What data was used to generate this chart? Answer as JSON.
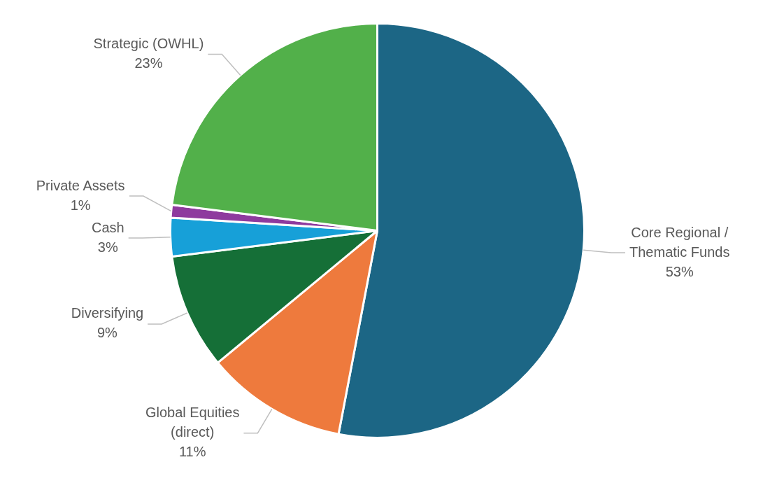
{
  "chart_data": {
    "type": "pie",
    "categories": [
      "Core Regional / Thematic Funds",
      "Global Equities (direct)",
      "Diversifying",
      "Cash",
      "Private Assets",
      "Strategic (OWHL)"
    ],
    "values": [
      53,
      11,
      9,
      3,
      1,
      23
    ],
    "value_labels": [
      "53%",
      "11%",
      "9%",
      "3%",
      "1%",
      "23%"
    ],
    "colors": [
      "#1c6685",
      "#ee7a3d",
      "#156f37",
      "#17a0d8",
      "#8e3a9e",
      "#52b04a"
    ]
  }
}
